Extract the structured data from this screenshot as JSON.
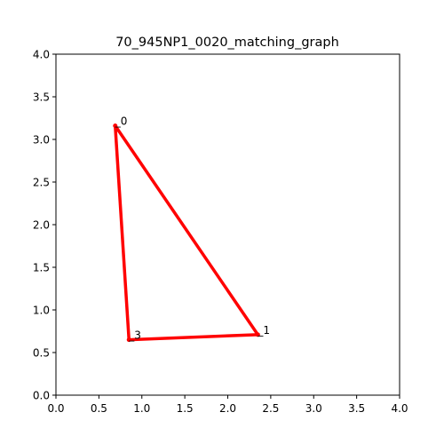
{
  "chart_data": {
    "type": "line",
    "title": "70_945NP1_0020_matching_graph",
    "xlim": [
      0,
      4
    ],
    "ylim": [
      0,
      4
    ],
    "xticks": [
      "0.0",
      "0.5",
      "1.0",
      "1.5",
      "2.0",
      "2.5",
      "3.0",
      "3.5",
      "4.0"
    ],
    "yticks": [
      "0.0",
      "0.5",
      "1.0",
      "1.5",
      "2.0",
      "2.5",
      "3.0",
      "3.5",
      "4.0"
    ],
    "nodes": [
      {
        "label": "_0",
        "x": 0.69,
        "y": 3.16
      },
      {
        "label": "_1",
        "x": 2.35,
        "y": 0.71
      },
      {
        "label": "_3",
        "x": 0.85,
        "y": 0.65
      }
    ],
    "edges": [
      [
        0,
        1
      ],
      [
        1,
        2
      ],
      [
        2,
        0
      ]
    ],
    "line_color": "#ff0000",
    "grid": false,
    "legend": "none"
  }
}
